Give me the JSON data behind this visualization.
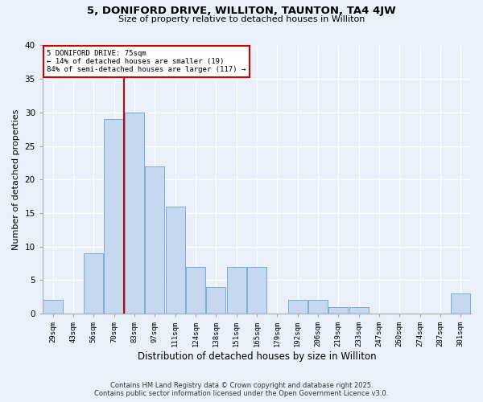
{
  "title1": "5, DONIFORD DRIVE, WILLITON, TAUNTON, TA4 4JW",
  "title2": "Size of property relative to detached houses in Williton",
  "xlabel": "Distribution of detached houses by size in Williton",
  "ylabel": "Number of detached properties",
  "categories": [
    "29sqm",
    "43sqm",
    "56sqm",
    "70sqm",
    "83sqm",
    "97sqm",
    "111sqm",
    "124sqm",
    "138sqm",
    "151sqm",
    "165sqm",
    "179sqm",
    "192sqm",
    "206sqm",
    "219sqm",
    "233sqm",
    "247sqm",
    "260sqm",
    "274sqm",
    "287sqm",
    "301sqm"
  ],
  "values": [
    2,
    0,
    9,
    29,
    30,
    22,
    16,
    7,
    4,
    7,
    7,
    0,
    2,
    2,
    1,
    1,
    0,
    0,
    0,
    0,
    3
  ],
  "bar_color": "#c5d8f0",
  "bar_edge_color": "#7aaed6",
  "background_color": "#eaf0f9",
  "grid_color": "#ffffff",
  "vline_x": 3.5,
  "vline_color": "#cc0000",
  "annotation_title": "5 DONIFORD DRIVE: 75sqm",
  "annotation_line1": "← 14% of detached houses are smaller (19)",
  "annotation_line2": "84% of semi-detached houses are larger (117) →",
  "annotation_box_color": "#cc0000",
  "footnote1": "Contains HM Land Registry data © Crown copyright and database right 2025.",
  "footnote2": "Contains public sector information licensed under the Open Government Licence v3.0.",
  "ylim": [
    0,
    40
  ],
  "yticks": [
    0,
    5,
    10,
    15,
    20,
    25,
    30,
    35,
    40
  ]
}
